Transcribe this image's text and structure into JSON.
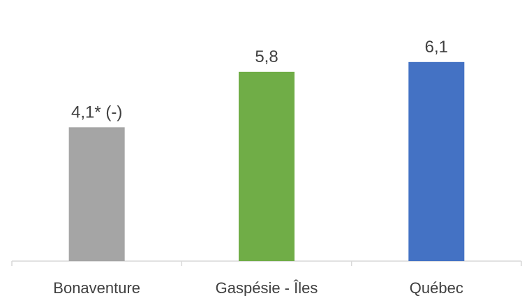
{
  "chart_data": {
    "type": "bar",
    "categories": [
      "Bonaventure",
      "Gaspésie - Îles",
      "Québec"
    ],
    "values": [
      4.1,
      5.8,
      6.1
    ],
    "data_labels": [
      "4,1* (-)",
      "5,8",
      "6,1"
    ],
    "colors": [
      "#A5A5A5",
      "#70AD47",
      "#4472C4"
    ],
    "title": "",
    "xlabel": "",
    "ylabel": "",
    "ylim": [
      0,
      8
    ],
    "grid": false,
    "legend": "none",
    "axis_color": "#D9D9D9"
  }
}
